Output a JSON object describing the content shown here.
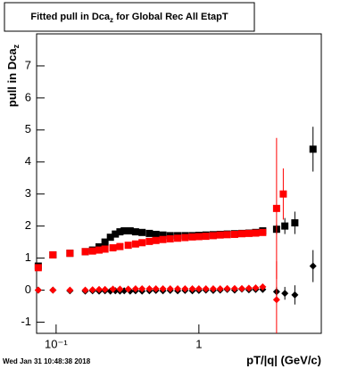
{
  "chart_data": {
    "type": "scatter",
    "title": [
      "Fitted pull in Dca",
      "z",
      " for Global Rec All EtapT"
    ],
    "ylabel": [
      "pull in Dca",
      "z"
    ],
    "xlabel": "pT/|q| (GeV/c)",
    "date": "Wed Jan 31 10:48:38 2018",
    "log_x": true,
    "xlim": [
      0.073,
      7.2
    ],
    "ylim": [
      -1.35,
      8.0
    ],
    "xticks": [
      {
        "value": 0.1,
        "label": "10⁻¹"
      },
      1
    ],
    "yticks": [
      -1,
      0,
      1,
      2,
      3,
      4,
      5,
      6,
      7
    ],
    "series": [
      {
        "name": "black-sigma",
        "color": "#000000",
        "marker": "square",
        "x": [
          0.075,
          0.095,
          0.125,
          0.16,
          0.18,
          0.2,
          0.22,
          0.24,
          0.26,
          0.28,
          0.3,
          0.33,
          0.36,
          0.4,
          0.45,
          0.5,
          0.56,
          0.63,
          0.71,
          0.8,
          0.9,
          1.0,
          1.12,
          1.26,
          1.41,
          1.58,
          1.78,
          2.0,
          2.24,
          2.5,
          2.8,
          3.5,
          4.0,
          4.7,
          6.3
        ],
        "values": [
          0.75,
          1.1,
          1.15,
          1.2,
          1.25,
          1.35,
          1.5,
          1.65,
          1.75,
          1.82,
          1.85,
          1.85,
          1.82,
          1.8,
          1.77,
          1.74,
          1.72,
          1.7,
          1.7,
          1.7,
          1.7,
          1.71,
          1.72,
          1.73,
          1.74,
          1.75,
          1.76,
          1.77,
          1.78,
          1.8,
          1.85,
          1.9,
          2.0,
          2.1,
          4.4
        ],
        "errors": [
          0.03,
          0.03,
          0.03,
          0.03,
          0.03,
          0.03,
          0.03,
          0.03,
          0.03,
          0.03,
          0.03,
          0.03,
          0.03,
          0.03,
          0.03,
          0.03,
          0.03,
          0.03,
          0.03,
          0.03,
          0.03,
          0.03,
          0.03,
          0.03,
          0.03,
          0.03,
          0.03,
          0.03,
          0.04,
          0.05,
          0.08,
          0.15,
          0.25,
          0.35,
          0.7
        ]
      },
      {
        "name": "black-mean",
        "color": "#000000",
        "marker": "diamond",
        "x": [
          0.075,
          0.095,
          0.125,
          0.16,
          0.18,
          0.2,
          0.22,
          0.24,
          0.26,
          0.28,
          0.3,
          0.33,
          0.36,
          0.4,
          0.45,
          0.5,
          0.56,
          0.63,
          0.71,
          0.8,
          0.9,
          1.0,
          1.12,
          1.26,
          1.41,
          1.58,
          1.78,
          2.0,
          2.24,
          2.5,
          2.8,
          3.5,
          4.0,
          4.7,
          6.3
        ],
        "values": [
          0.0,
          0.0,
          -0.02,
          -0.03,
          -0.02,
          -0.03,
          -0.02,
          -0.03,
          -0.02,
          -0.03,
          -0.02,
          -0.03,
          -0.02,
          -0.03,
          -0.02,
          -0.01,
          -0.02,
          -0.01,
          -0.02,
          -0.01,
          -0.02,
          -0.01,
          0.0,
          -0.01,
          0.0,
          0.02,
          0.0,
          0.03,
          0.01,
          0.02,
          0.02,
          -0.05,
          -0.1,
          -0.15,
          0.75
        ],
        "errors": [
          0.03,
          0.03,
          0.03,
          0.03,
          0.03,
          0.03,
          0.03,
          0.03,
          0.03,
          0.03,
          0.03,
          0.03,
          0.03,
          0.03,
          0.03,
          0.03,
          0.03,
          0.03,
          0.03,
          0.03,
          0.03,
          0.03,
          0.03,
          0.03,
          0.03,
          0.03,
          0.03,
          0.03,
          0.04,
          0.05,
          0.06,
          0.15,
          0.2,
          0.3,
          0.5
        ]
      },
      {
        "name": "red-sigma",
        "color": "#ff0000",
        "marker": "square",
        "x": [
          0.075,
          0.095,
          0.125,
          0.16,
          0.18,
          0.2,
          0.22,
          0.25,
          0.28,
          0.32,
          0.36,
          0.4,
          0.45,
          0.5,
          0.56,
          0.63,
          0.71,
          0.8,
          0.9,
          1.0,
          1.12,
          1.26,
          1.41,
          1.58,
          1.78,
          2.0,
          2.24,
          2.5,
          2.8,
          3.5,
          3.9
        ],
        "values": [
          0.7,
          1.1,
          1.15,
          1.2,
          1.22,
          1.25,
          1.28,
          1.32,
          1.36,
          1.4,
          1.44,
          1.48,
          1.52,
          1.55,
          1.58,
          1.6,
          1.62,
          1.64,
          1.66,
          1.67,
          1.68,
          1.7,
          1.72,
          1.73,
          1.74,
          1.76,
          1.77,
          1.78,
          1.8,
          2.55,
          3.0
        ],
        "errors": [
          0.03,
          0.03,
          0.03,
          0.03,
          0.03,
          0.03,
          0.03,
          0.03,
          0.03,
          0.03,
          0.03,
          0.03,
          0.03,
          0.03,
          0.03,
          0.03,
          0.03,
          0.03,
          0.03,
          0.03,
          0.03,
          0.03,
          0.03,
          0.03,
          0.03,
          0.03,
          0.03,
          0.04,
          0.05,
          2.2,
          0.8
        ]
      },
      {
        "name": "red-mean",
        "color": "#ff0000",
        "marker": "diamond",
        "x": [
          0.075,
          0.095,
          0.125,
          0.16,
          0.18,
          0.2,
          0.22,
          0.25,
          0.28,
          0.32,
          0.36,
          0.4,
          0.45,
          0.5,
          0.56,
          0.63,
          0.71,
          0.8,
          0.9,
          1.0,
          1.12,
          1.26,
          1.41,
          1.58,
          1.78,
          2.0,
          2.24,
          2.5,
          2.8,
          3.5
        ],
        "values": [
          0.0,
          0.0,
          0.0,
          0.0,
          0.01,
          0.02,
          0.02,
          0.03,
          0.03,
          0.03,
          0.04,
          0.04,
          0.04,
          0.04,
          0.04,
          0.04,
          0.04,
          0.04,
          0.04,
          0.04,
          0.04,
          0.04,
          0.04,
          0.05,
          0.05,
          0.05,
          0.06,
          0.07,
          0.1,
          -0.3
        ],
        "errors": [
          0.03,
          0.03,
          0.03,
          0.03,
          0.03,
          0.03,
          0.03,
          0.03,
          0.03,
          0.03,
          0.03,
          0.03,
          0.03,
          0.03,
          0.03,
          0.03,
          0.03,
          0.03,
          0.03,
          0.03,
          0.03,
          0.03,
          0.03,
          0.03,
          0.03,
          0.03,
          0.03,
          0.04,
          0.05,
          1.2
        ]
      }
    ]
  }
}
